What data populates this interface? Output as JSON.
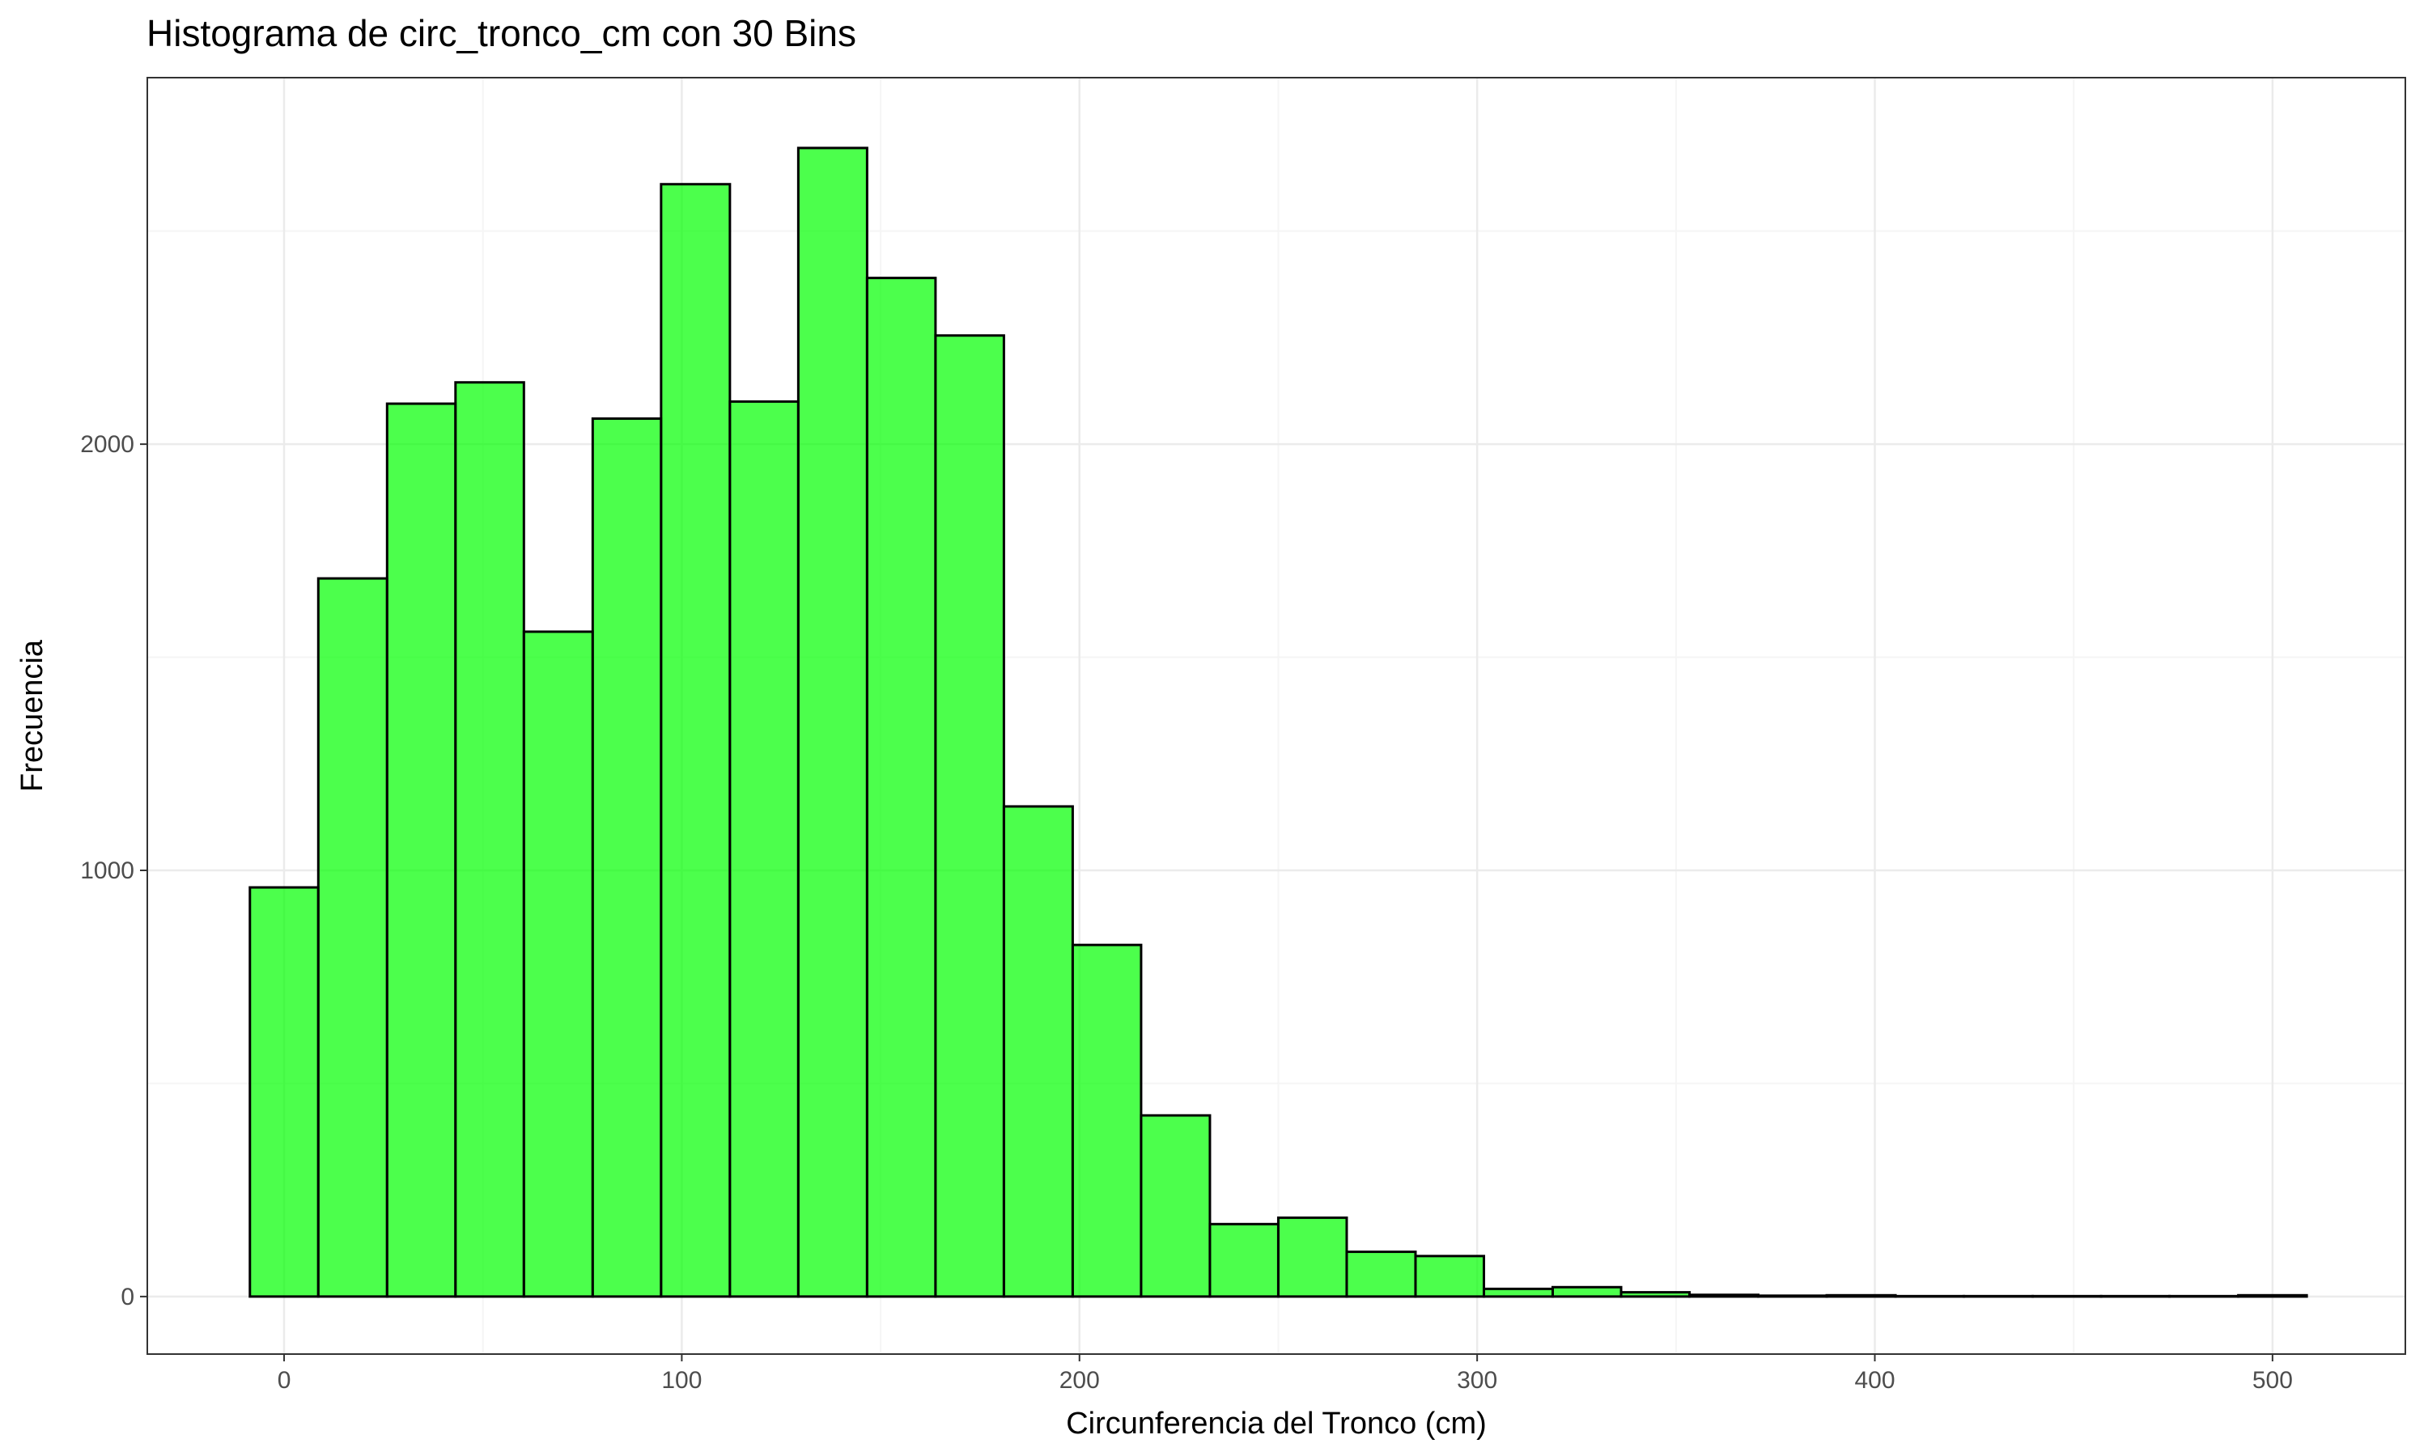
{
  "chart_data": {
    "type": "bar",
    "title": "Histograma de circ_tronco_cm con 30 Bins",
    "xlabel": "Circunferencia del Tronco (cm)",
    "ylabel": "Frecuencia",
    "xlim": [
      -34.4,
      533.4
    ],
    "ylim": [
      -135,
      2860
    ],
    "x_ticks": [
      0,
      100,
      200,
      300,
      400,
      500
    ],
    "x_minor_ticks": [
      50,
      150,
      250,
      350,
      450
    ],
    "y_ticks": [
      0,
      1000,
      2000
    ],
    "y_minor_ticks": [
      500,
      1500,
      2500
    ],
    "grid": true,
    "bin_width": 17.24,
    "bins": [
      {
        "x0": -8.6,
        "x1": 8.6,
        "count": 960
      },
      {
        "x0": 8.6,
        "x1": 25.9,
        "count": 1685
      },
      {
        "x0": 25.9,
        "x1": 43.1,
        "count": 2095
      },
      {
        "x0": 43.1,
        "x1": 60.3,
        "count": 2145
      },
      {
        "x0": 60.3,
        "x1": 77.6,
        "count": 1560
      },
      {
        "x0": 77.6,
        "x1": 94.8,
        "count": 2060
      },
      {
        "x0": 94.8,
        "x1": 112.1,
        "count": 2610
      },
      {
        "x0": 112.1,
        "x1": 129.3,
        "count": 2100
      },
      {
        "x0": 129.3,
        "x1": 146.6,
        "count": 2695
      },
      {
        "x0": 146.6,
        "x1": 163.8,
        "count": 2390
      },
      {
        "x0": 163.8,
        "x1": 181.0,
        "count": 2255
      },
      {
        "x0": 181.0,
        "x1": 198.3,
        "count": 1150
      },
      {
        "x0": 198.3,
        "x1": 215.5,
        "count": 825
      },
      {
        "x0": 215.5,
        "x1": 232.8,
        "count": 425
      },
      {
        "x0": 232.8,
        "x1": 250.0,
        "count": 170
      },
      {
        "x0": 250.0,
        "x1": 267.2,
        "count": 185
      },
      {
        "x0": 267.2,
        "x1": 284.5,
        "count": 105
      },
      {
        "x0": 284.5,
        "x1": 301.7,
        "count": 95
      },
      {
        "x0": 301.7,
        "x1": 319.0,
        "count": 18
      },
      {
        "x0": 319.0,
        "x1": 336.2,
        "count": 22
      },
      {
        "x0": 336.2,
        "x1": 353.4,
        "count": 10
      },
      {
        "x0": 353.4,
        "x1": 370.7,
        "count": 4
      },
      {
        "x0": 370.7,
        "x1": 387.9,
        "count": 2
      },
      {
        "x0": 387.9,
        "x1": 405.2,
        "count": 3
      },
      {
        "x0": 405.2,
        "x1": 422.4,
        "count": 1
      },
      {
        "x0": 422.4,
        "x1": 439.7,
        "count": 1
      },
      {
        "x0": 439.7,
        "x1": 456.9,
        "count": 1
      },
      {
        "x0": 456.9,
        "x1": 474.1,
        "count": 1
      },
      {
        "x0": 474.1,
        "x1": 491.4,
        "count": 1
      },
      {
        "x0": 491.4,
        "x1": 508.6,
        "count": 3
      }
    ],
    "colors": {
      "bar_fill": "#00ff00",
      "bar_fill_opacity": 0.7,
      "bar_stroke": "#000000",
      "grid_major": "#ebebeb",
      "grid_minor": "#f5f5f5",
      "panel_border": "#333333",
      "tick_text": "#4d4d4d"
    }
  }
}
